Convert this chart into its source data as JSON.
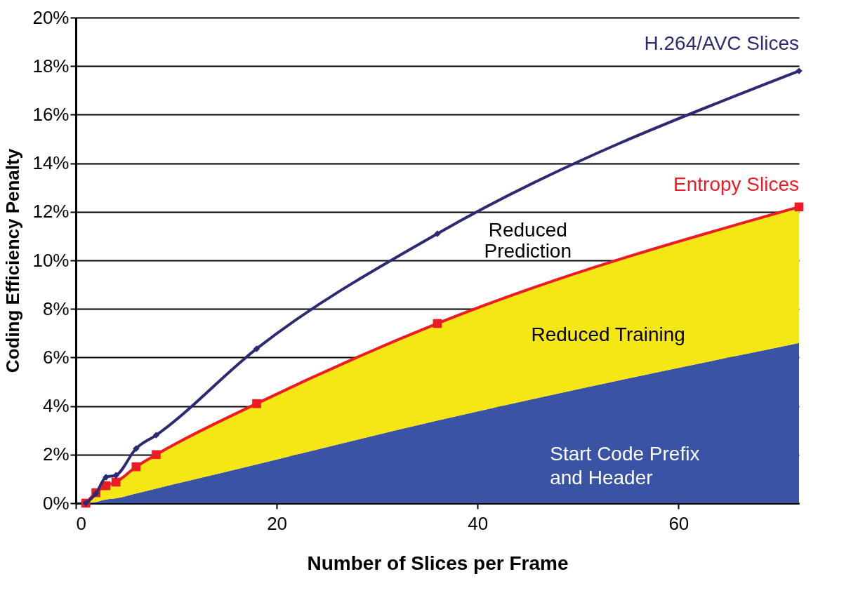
{
  "chart_data": {
    "type": "line",
    "xlabel": "Number of Slices per Frame",
    "ylabel": "Coding Efficiency Penalty",
    "x": [
      1,
      2,
      3,
      4,
      6,
      8,
      18,
      36,
      72
    ],
    "series": [
      {
        "name": "Start Code Prefix\nand Header",
        "type": "area",
        "color": "#3a53a4",
        "values": [
          0,
          0.05,
          0.15,
          0.2,
          0.4,
          0.6,
          1.6,
          3.4,
          6.6
        ]
      },
      {
        "name": "Entropy Slices",
        "color": "#ed1c24",
        "marker": "square",
        "values": [
          0,
          0.43,
          0.72,
          0.87,
          1.5,
          2.0,
          4.1,
          7.4,
          12.2
        ],
        "lower": [
          0,
          0.05,
          0.15,
          0.2,
          0.4,
          0.6,
          1.6,
          3.4,
          6.6
        ],
        "upper": [
          0,
          0.43,
          0.72,
          0.87,
          1.5,
          2.0,
          4.1,
          7.4,
          12.2
        ]
      },
      {
        "name": "H.264/AVC Slices",
        "color": "#2b2a72",
        "marker": "diamond",
        "values": [
          0,
          0.4,
          1.07,
          1.15,
          2.25,
          2.8,
          6.36,
          11.1,
          17.8
        ]
      }
    ],
    "annotations": [
      "Reduced\nPrediction",
      "Reduced Training"
    ],
    "xlim": [
      0,
      72
    ],
    "xticks": [
      0,
      20,
      40,
      60
    ],
    "ylim": [
      0,
      20
    ],
    "yticks": [
      {
        "value": 0,
        "label": "0%"
      },
      {
        "value": 2,
        "label": "2%"
      },
      {
        "value": 4,
        "label": "4%"
      },
      {
        "value": 6,
        "label": "6%"
      },
      {
        "value": 8,
        "label": "8%"
      },
      {
        "value": 10,
        "label": "10%"
      },
      {
        "value": 12,
        "label": "12%"
      },
      {
        "value": 14,
        "label": "14%"
      },
      {
        "value": 16,
        "label": "16%"
      },
      {
        "value": 18,
        "label": "18%"
      },
      {
        "value": 20,
        "label": "20%"
      }
    ],
    "grid": "y",
    "legend": false,
    "line_style": "solid"
  }
}
